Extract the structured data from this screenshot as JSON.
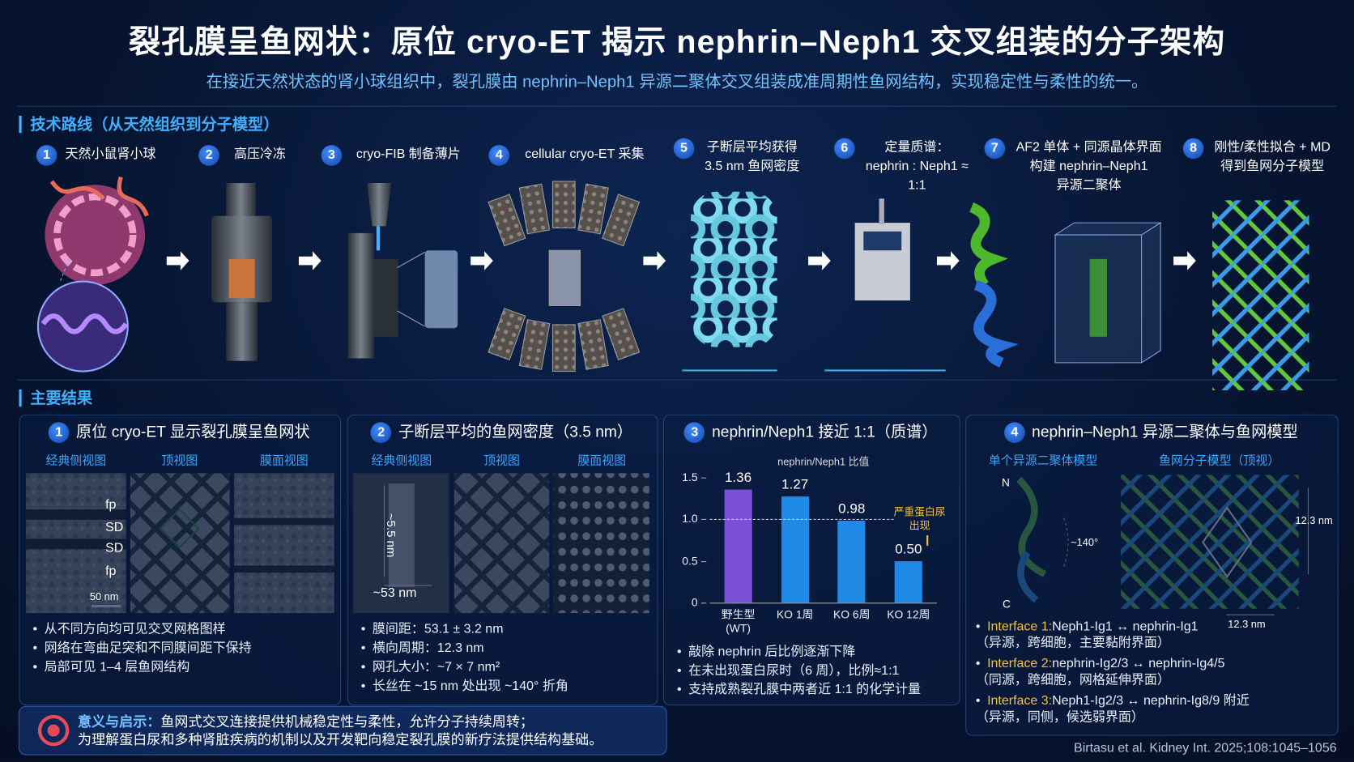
{
  "header": {
    "title": "裂孔膜呈鱼网状：原位 cryo-ET 揭示 nephrin–Neph1 交叉组装的分子架构",
    "subtitle": "在接近天然状态的肾小球组织中，裂孔膜由 nephrin–Neph1 异源二聚体交叉组装成准周期性鱼网结构，实现稳定性与柔性的统一。"
  },
  "workflow": {
    "heading": "技术路线（从天然组织到分子模型）",
    "steps": [
      {
        "number": 1,
        "lines": [
          "天然小鼠肾小球"
        ]
      },
      {
        "number": 2,
        "lines": [
          "高压冷冻"
        ]
      },
      {
        "number": 3,
        "lines": [
          "cryo-FIB 制备薄片"
        ]
      },
      {
        "number": 4,
        "lines": [
          "cellular cryo-ET 采集"
        ]
      },
      {
        "number": 5,
        "lines": [
          "子断层平均获得",
          "3.5 nm 鱼网密度"
        ]
      },
      {
        "number": 6,
        "lines": [
          "定量质谱：",
          "nephrin : Neph1 ≈ 1:1"
        ]
      },
      {
        "number": 7,
        "lines": [
          "AF2 单体 + 同源晶体界面",
          "构建 nephrin–Neph1",
          "异源二聚体"
        ]
      },
      {
        "number": 8,
        "lines": [
          "刚性/柔性拟合 + MD",
          "得到鱼网分子模型"
        ]
      }
    ]
  },
  "results": {
    "heading": "主要结果",
    "panels": [
      {
        "number": 1,
        "title": "原位 cryo-ET 显示裂孔膜呈鱼网状",
        "views": [
          "经典侧视图",
          "顶视图",
          "膜面视图"
        ],
        "image_labels": [
          "fp",
          "SD",
          "SD",
          "fp",
          "50 nm"
        ],
        "bullets": [
          "从不同方向均可见交叉网格图样",
          "网络在弯曲足突和不同膜间距下保持",
          "局部可见 1–4 层鱼网结构"
        ]
      },
      {
        "number": 2,
        "title": "子断层平均的鱼网密度（3.5 nm）",
        "views": [
          "经典侧视图",
          "顶视图",
          "膜面视图"
        ],
        "image_labels": [
          "~5.5 nm",
          "~53 nm"
        ],
        "bullets": [
          "膜间距：53.1 ± 3.2 nm",
          "横向周期：12.3 nm",
          "网孔大小：~7 × 7 nm²",
          "长丝在 ~15 nm 处出现 ~140° 折角"
        ]
      },
      {
        "number": 3,
        "title": "nephrin/Neph1 接近 1:1（质谱）",
        "bullets": [
          "敲除 nephrin 后比例逐渐下降",
          "在未出现蛋白尿时（6 周），比例≈1:1",
          "支持成熟裂孔膜中两者近 1:1 的化学计量"
        ]
      },
      {
        "number": 4,
        "title": "nephrin–Neph1 异源二聚体与鱼网模型",
        "views": [
          "单个异源二聚体模型",
          "鱼网分子模型（顶视）"
        ],
        "image_labels": [
          "N",
          "C",
          "~140°",
          "12.3 nm",
          "12.3 nm"
        ],
        "interfaces": [
          {
            "name": "Interface 1:",
            "text": "Neph1-Ig1 ↔ nephrin-Ig1",
            "note": "（异源，跨细胞，主要黏附界面）"
          },
          {
            "name": "Interface 2:",
            "text": "nephrin-Ig2/3 ↔ nephrin-Ig4/5",
            "note": "（同源，跨细胞，网格延伸界面）"
          },
          {
            "name": "Interface 3:",
            "text": "Neph1-Ig2/3 ↔ nephrin-Ig8/9 附近",
            "note": "（异源，同侧，候选弱界面）"
          }
        ]
      }
    ]
  },
  "chart_data": {
    "type": "bar",
    "title": "nephrin/Neph1 比值",
    "categories": [
      "野生型\n(WT)",
      "KO 1周",
      "KO 6周",
      "KO 12周"
    ],
    "values": [
      1.36,
      1.27,
      0.98,
      0.5
    ],
    "value_labels": [
      "1.36",
      "1.27",
      "0.98",
      "0.50"
    ],
    "colors": [
      "#7b4fd6",
      "#1e8ae6",
      "#1e8ae6",
      "#1e8ae6"
    ],
    "ylim": [
      0,
      1.5
    ],
    "yticks": [
      0,
      0.5,
      {
        "value": 1,
        "label": "1.0"
      },
      1.5
    ],
    "reference_line": 1,
    "annotation_lines": [
      "严重蛋白尿",
      "出现"
    ],
    "annotation_color": "#f4c23a",
    "grid": false
  },
  "footer": {
    "implication_label": "意义与启示：",
    "implication_lines": [
      "鱼网式交叉连接提供机械稳定性与柔性，允许分子持续周转；",
      "为理解蛋白尿和多种肾脏疾病的机制以及开发靶向稳定裂孔膜的新疗法提供结构基础。"
    ],
    "citation": "Birtasu et al. Kidney Int. 2025;108:1045–1056"
  }
}
